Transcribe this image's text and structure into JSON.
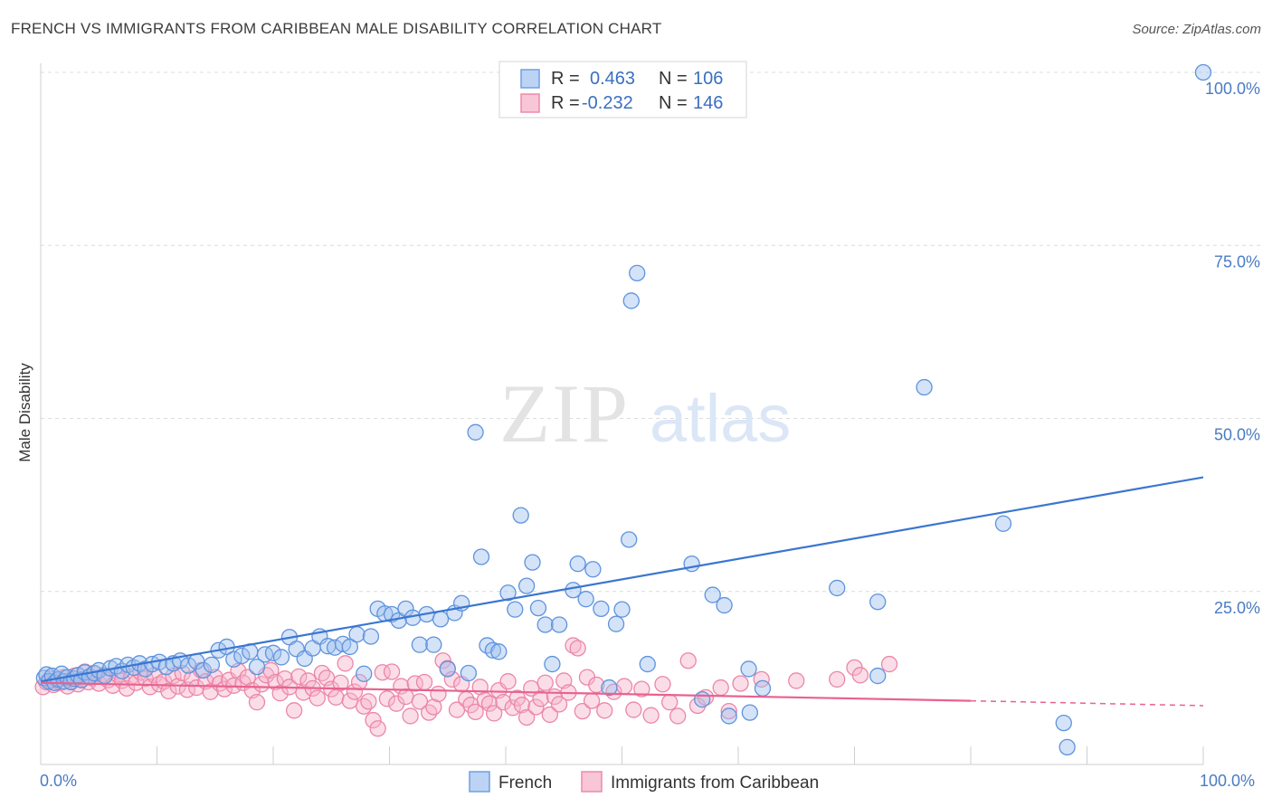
{
  "title": "FRENCH VS IMMIGRANTS FROM CARIBBEAN MALE DISABILITY CORRELATION CHART",
  "source": "Source: ZipAtlas.com",
  "watermark": {
    "zip": "ZIP",
    "atlas": "atlas"
  },
  "legend": {
    "r_label": "R =",
    "n_label": "N =",
    "rows": [
      {
        "r": "0.463",
        "n": "106",
        "color": "#6fa0e6",
        "fill": "#bcd3f4"
      },
      {
        "r": "-0.232",
        "n": "146",
        "color": "#ee8aab",
        "fill": "#f8c6d6"
      }
    ]
  },
  "colors": {
    "french": "#3a76d0",
    "caribbean": "#e8628f",
    "grid": "#dcdcdc",
    "axis_text": "#4a7bc4"
  },
  "chart_data": {
    "type": "scatter",
    "title": "FRENCH VS IMMIGRANTS FROM CARIBBEAN MALE DISABILITY CORRELATION CHART",
    "xlabel": "",
    "ylabel": "Male Disability",
    "xlim": [
      0,
      100
    ],
    "ylim": [
      0,
      100
    ],
    "x_tick_labels": [
      "0.0%",
      "100.0%"
    ],
    "y_tick_labels": [
      "25.0%",
      "50.0%",
      "75.0%",
      "100.0%"
    ],
    "y_ticks": [
      25,
      50,
      75,
      100
    ],
    "grid": true,
    "legend_position": "top-center",
    "series": [
      {
        "name": "French",
        "trend": {
          "x": [
            0,
            100
          ],
          "y": [
            12.0,
            41.5
          ],
          "style": "solid"
        },
        "points": [
          [
            0.3,
            12.5
          ],
          [
            0.5,
            13.0
          ],
          [
            0.7,
            12.0
          ],
          [
            1.0,
            12.8
          ],
          [
            1.2,
            11.8
          ],
          [
            1.5,
            12.3
          ],
          [
            1.8,
            13.1
          ],
          [
            2.0,
            12.0
          ],
          [
            2.3,
            12.6
          ],
          [
            2.6,
            11.9
          ],
          [
            2.9,
            12.4
          ],
          [
            3.2,
            12.9
          ],
          [
            3.5,
            12.2
          ],
          [
            3.8,
            13.3
          ],
          [
            4.2,
            12.7
          ],
          [
            4.6,
            13.2
          ],
          [
            5.0,
            13.6
          ],
          [
            5.5,
            12.8
          ],
          [
            6.0,
            13.9
          ],
          [
            6.5,
            14.2
          ],
          [
            7.0,
            13.5
          ],
          [
            7.5,
            14.4
          ],
          [
            8.0,
            14.0
          ],
          [
            8.5,
            14.6
          ],
          [
            9.0,
            13.8
          ],
          [
            9.6,
            14.5
          ],
          [
            10.2,
            14.8
          ],
          [
            10.8,
            14.1
          ],
          [
            11.4,
            14.6
          ],
          [
            12.0,
            15.0
          ],
          [
            12.7,
            14.3
          ],
          [
            13.4,
            14.9
          ],
          [
            14.0,
            13.6
          ],
          [
            14.7,
            14.4
          ],
          [
            15.3,
            16.5
          ],
          [
            16.0,
            17.0
          ],
          [
            16.6,
            15.2
          ],
          [
            17.3,
            15.7
          ],
          [
            18.0,
            16.3
          ],
          [
            18.6,
            14.1
          ],
          [
            19.3,
            15.9
          ],
          [
            20.0,
            16.1
          ],
          [
            20.7,
            15.5
          ],
          [
            21.4,
            18.4
          ],
          [
            22.0,
            16.7
          ],
          [
            22.7,
            15.3
          ],
          [
            23.4,
            16.8
          ],
          [
            24.0,
            18.5
          ],
          [
            24.7,
            17.1
          ],
          [
            25.3,
            16.9
          ],
          [
            26.0,
            17.4
          ],
          [
            26.6,
            17.0
          ],
          [
            27.2,
            18.8
          ],
          [
            27.8,
            13.1
          ],
          [
            28.4,
            18.5
          ],
          [
            29.0,
            22.5
          ],
          [
            29.6,
            21.8
          ],
          [
            30.2,
            21.7
          ],
          [
            30.8,
            20.8
          ],
          [
            31.4,
            22.5
          ],
          [
            32.0,
            21.2
          ],
          [
            32.6,
            17.3
          ],
          [
            33.2,
            21.7
          ],
          [
            33.8,
            17.3
          ],
          [
            34.4,
            21.0
          ],
          [
            35.0,
            13.8
          ],
          [
            35.6,
            21.9
          ],
          [
            36.2,
            23.3
          ],
          [
            36.8,
            13.2
          ],
          [
            37.4,
            48.0
          ],
          [
            37.9,
            30.0
          ],
          [
            38.4,
            17.2
          ],
          [
            38.9,
            16.5
          ],
          [
            39.4,
            16.3
          ],
          [
            40.2,
            24.8
          ],
          [
            40.8,
            22.4
          ],
          [
            41.3,
            36.0
          ],
          [
            41.8,
            25.8
          ],
          [
            42.3,
            29.2
          ],
          [
            42.8,
            22.6
          ],
          [
            43.4,
            20.2
          ],
          [
            44.0,
            14.5
          ],
          [
            44.6,
            20.2
          ],
          [
            45.8,
            25.2
          ],
          [
            46.2,
            29.0
          ],
          [
            46.9,
            23.9
          ],
          [
            47.5,
            28.2
          ],
          [
            48.2,
            22.5
          ],
          [
            48.9,
            11.1
          ],
          [
            49.5,
            20.3
          ],
          [
            50.0,
            22.4
          ],
          [
            50.8,
            67.0
          ],
          [
            51.3,
            71.0
          ],
          [
            50.6,
            32.5
          ],
          [
            52.2,
            14.5
          ],
          [
            56.0,
            29.0
          ],
          [
            56.9,
            9.4
          ],
          [
            57.8,
            24.5
          ],
          [
            58.8,
            23.0
          ],
          [
            59.2,
            7.0
          ],
          [
            60.9,
            13.8
          ],
          [
            61.0,
            7.5
          ],
          [
            62.1,
            11.0
          ],
          [
            68.5,
            25.5
          ],
          [
            72.0,
            23.5
          ],
          [
            72.0,
            12.8
          ],
          [
            76.0,
            54.5
          ],
          [
            82.8,
            34.8
          ],
          [
            88.0,
            6.0
          ],
          [
            88.3,
            2.5
          ],
          [
            100,
            100
          ]
        ]
      },
      {
        "name": "Immigrants from Caribbean",
        "trend": {
          "x": [
            0,
            80
          ],
          "y": [
            11.8,
            9.2
          ],
          "style": "solid",
          "extended_to": 100,
          "extended_y": 8.5
        },
        "points": [
          [
            0.2,
            11.2
          ],
          [
            0.5,
            11.9
          ],
          [
            0.8,
            12.4
          ],
          [
            1.1,
            11.5
          ],
          [
            1.4,
            12.1
          ],
          [
            1.7,
            11.8
          ],
          [
            2.0,
            12.6
          ],
          [
            2.3,
            11.3
          ],
          [
            2.6,
            12.0
          ],
          [
            2.9,
            12.8
          ],
          [
            3.2,
            11.6
          ],
          [
            3.5,
            12.3
          ],
          [
            3.8,
            13.4
          ],
          [
            4.1,
            11.9
          ],
          [
            4.4,
            12.5
          ],
          [
            4.7,
            13.1
          ],
          [
            5.0,
            11.7
          ],
          [
            5.4,
            12.9
          ],
          [
            5.8,
            12.2
          ],
          [
            6.2,
            11.4
          ],
          [
            6.6,
            13.0
          ],
          [
            7.0,
            12.1
          ],
          [
            7.4,
            11.0
          ],
          [
            7.8,
            12.7
          ],
          [
            8.2,
            11.8
          ],
          [
            8.6,
            13.3
          ],
          [
            9.0,
            12.4
          ],
          [
            9.4,
            11.2
          ],
          [
            9.8,
            12.9
          ],
          [
            10.2,
            11.6
          ],
          [
            10.6,
            12.0
          ],
          [
            11.0,
            10.6
          ],
          [
            11.4,
            12.8
          ],
          [
            11.8,
            11.3
          ],
          [
            12.2,
            13.2
          ],
          [
            12.6,
            10.8
          ],
          [
            13.0,
            12.4
          ],
          [
            13.4,
            11.1
          ],
          [
            13.8,
            13.6
          ],
          [
            14.2,
            12.0
          ],
          [
            14.6,
            10.5
          ],
          [
            15.0,
            12.6
          ],
          [
            15.4,
            11.7
          ],
          [
            15.8,
            10.9
          ],
          [
            16.2,
            12.2
          ],
          [
            16.6,
            11.4
          ],
          [
            17.0,
            13.5
          ],
          [
            17.4,
            11.8
          ],
          [
            17.8,
            12.6
          ],
          [
            18.2,
            10.7
          ],
          [
            18.6,
            9.0
          ],
          [
            19.0,
            11.6
          ],
          [
            19.4,
            12.9
          ],
          [
            19.8,
            13.6
          ],
          [
            20.2,
            11.9
          ],
          [
            20.6,
            10.3
          ],
          [
            21.0,
            12.4
          ],
          [
            21.4,
            11.2
          ],
          [
            21.8,
            7.8
          ],
          [
            22.2,
            12.7
          ],
          [
            22.6,
            10.4
          ],
          [
            23.0,
            12.1
          ],
          [
            23.4,
            11.0
          ],
          [
            23.8,
            9.6
          ],
          [
            24.2,
            13.2
          ],
          [
            24.6,
            12.5
          ],
          [
            25.0,
            10.9
          ],
          [
            25.4,
            9.7
          ],
          [
            25.8,
            11.8
          ],
          [
            26.2,
            14.6
          ],
          [
            26.6,
            9.2
          ],
          [
            27.0,
            10.5
          ],
          [
            27.4,
            11.9
          ],
          [
            27.8,
            8.4
          ],
          [
            28.2,
            9.1
          ],
          [
            28.6,
            6.4
          ],
          [
            29.0,
            5.2
          ],
          [
            29.4,
            13.3
          ],
          [
            29.8,
            9.5
          ],
          [
            30.2,
            13.4
          ],
          [
            30.6,
            8.8
          ],
          [
            31.0,
            11.3
          ],
          [
            31.4,
            9.8
          ],
          [
            31.8,
            7.0
          ],
          [
            32.2,
            11.7
          ],
          [
            32.6,
            9.1
          ],
          [
            33.0,
            11.9
          ],
          [
            33.4,
            7.5
          ],
          [
            33.8,
            8.3
          ],
          [
            34.2,
            10.2
          ],
          [
            34.6,
            15.0
          ],
          [
            35.0,
            13.9
          ],
          [
            35.4,
            12.3
          ],
          [
            35.8,
            7.9
          ],
          [
            36.2,
            11.6
          ],
          [
            36.6,
            9.4
          ],
          [
            37.0,
            8.6
          ],
          [
            37.4,
            7.6
          ],
          [
            37.8,
            11.2
          ],
          [
            38.2,
            9.3
          ],
          [
            38.6,
            8.8
          ],
          [
            39.0,
            7.4
          ],
          [
            39.4,
            10.7
          ],
          [
            39.8,
            9.0
          ],
          [
            40.2,
            12.0
          ],
          [
            40.6,
            8.2
          ],
          [
            41.0,
            9.6
          ],
          [
            41.4,
            8.6
          ],
          [
            41.8,
            6.8
          ],
          [
            42.2,
            11.0
          ],
          [
            42.6,
            8.3
          ],
          [
            43.0,
            9.5
          ],
          [
            43.4,
            11.8
          ],
          [
            43.8,
            7.2
          ],
          [
            44.2,
            9.8
          ],
          [
            44.6,
            8.7
          ],
          [
            45.0,
            12.1
          ],
          [
            45.4,
            10.4
          ],
          [
            45.8,
            17.2
          ],
          [
            46.2,
            16.8
          ],
          [
            46.6,
            7.7
          ],
          [
            47.0,
            12.6
          ],
          [
            47.4,
            9.2
          ],
          [
            47.8,
            11.5
          ],
          [
            48.5,
            7.8
          ],
          [
            49.3,
            10.5
          ],
          [
            50.2,
            11.3
          ],
          [
            51.0,
            7.9
          ],
          [
            51.7,
            10.9
          ],
          [
            52.5,
            7.1
          ],
          [
            53.5,
            11.6
          ],
          [
            54.1,
            9.0
          ],
          [
            54.8,
            7.0
          ],
          [
            55.7,
            15.0
          ],
          [
            56.5,
            8.5
          ],
          [
            57.2,
            9.7
          ],
          [
            58.5,
            11.1
          ],
          [
            59.2,
            7.7
          ],
          [
            60.2,
            11.7
          ],
          [
            62.0,
            12.3
          ],
          [
            65.0,
            12.1
          ],
          [
            68.5,
            12.3
          ],
          [
            70.0,
            14.0
          ],
          [
            70.5,
            12.9
          ],
          [
            73.0,
            14.5
          ]
        ]
      }
    ]
  },
  "bottom_legend": [
    {
      "label": "French",
      "fill": "#bcd3f4",
      "stroke": "#6fa0e6"
    },
    {
      "label": "Immigrants from Caribbean",
      "fill": "#f8c6d6",
      "stroke": "#ee8aab"
    }
  ]
}
